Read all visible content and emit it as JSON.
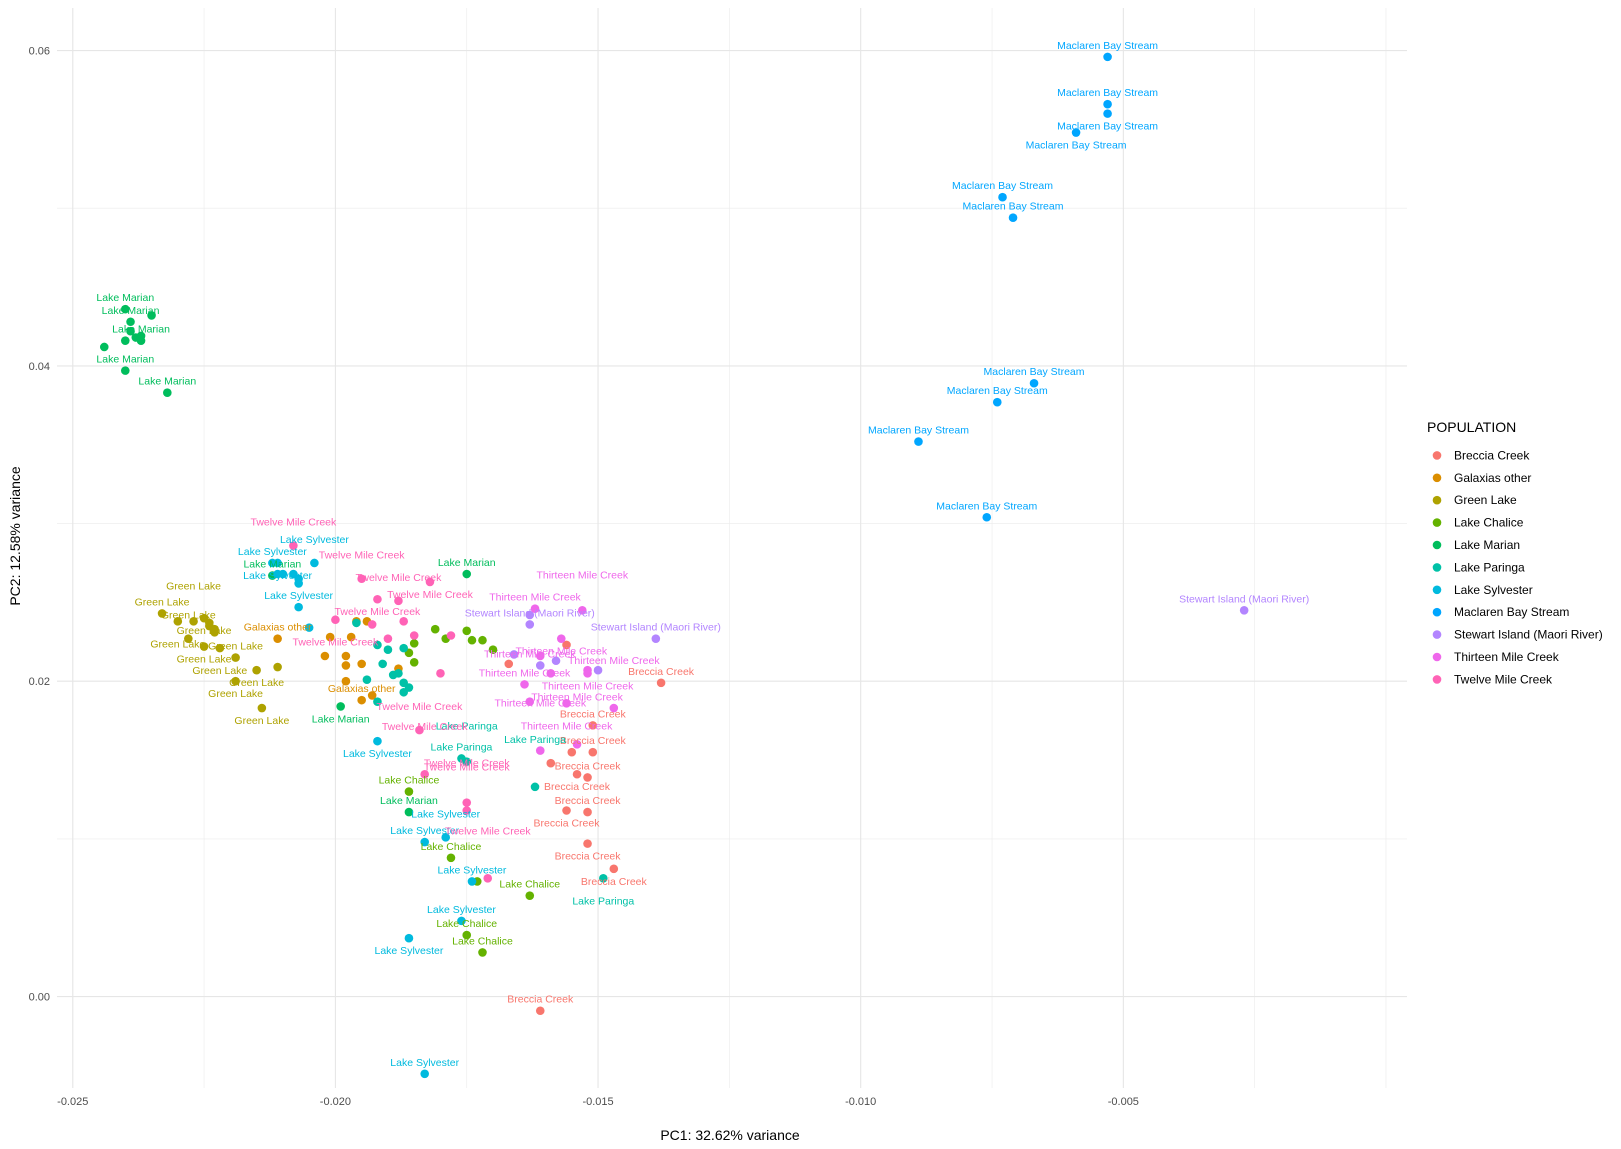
{
  "chart_data": {
    "type": "scatter",
    "title": "",
    "xlabel": "PC1: 32.62% variance",
    "ylabel": "PC2: 12.58% variance",
    "xlim": [
      -0.0253,
      0.0004
    ],
    "ylim": [
      -0.0058,
      0.0627
    ],
    "x_ticks": [
      -0.025,
      -0.02,
      -0.015,
      -0.01,
      -0.005
    ],
    "x_tick_labels": [
      "-0.025",
      "-0.020",
      "-0.015",
      "-0.010",
      "-0.005"
    ],
    "y_ticks": [
      0.0,
      0.02,
      0.04,
      0.06
    ],
    "y_tick_labels": [
      "0.00",
      "0.02",
      "0.04",
      "0.06"
    ],
    "grid": true,
    "legend": {
      "title": "POPULATION",
      "position": "right",
      "entries": [
        {
          "name": "Breccia Creek",
          "color": "#F8766D"
        },
        {
          "name": "Galaxias other",
          "color": "#DB8E00"
        },
        {
          "name": "Green Lake",
          "color": "#AEA200"
        },
        {
          "name": "Lake Chalice",
          "color": "#64B200"
        },
        {
          "name": "Lake Marian",
          "color": "#00BD5C"
        },
        {
          "name": "Lake Paringa",
          "color": "#00C1A7"
        },
        {
          "name": "Lake Sylvester",
          "color": "#00BADE"
        },
        {
          "name": "Maclaren Bay Stream",
          "color": "#00A6FF"
        },
        {
          "name": "Stewart Island (Maori River)",
          "color": "#B385FF"
        },
        {
          "name": "Thirteen Mile Creek",
          "color": "#EF67EB"
        },
        {
          "name": "Twelve Mile Creek",
          "color": "#FF63B6"
        }
      ]
    },
    "series": [
      {
        "name": "Breccia Creek",
        "points": [
          [
            -0.0138,
            0.0199,
            "Breccia Creek"
          ],
          [
            -0.0151,
            0.0172,
            "Breccia Creek"
          ],
          [
            -0.0151,
            0.0155,
            "Breccia Creek"
          ],
          [
            -0.0152,
            0.0139,
            "Breccia Creek"
          ],
          [
            -0.0154,
            0.0141,
            "Breccia Creek"
          ],
          [
            -0.0152,
            0.0117,
            "Breccia Creek"
          ],
          [
            -0.0156,
            0.0118,
            "Breccia Creek"
          ],
          [
            -0.0152,
            0.0097,
            "Breccia Creek"
          ],
          [
            -0.0147,
            0.0081,
            "Breccia Creek"
          ],
          [
            -0.0161,
            -0.0009,
            "Breccia Creek"
          ],
          [
            -0.0156,
            0.0223,
            ""
          ],
          [
            -0.0167,
            0.0211,
            ""
          ],
          [
            -0.0159,
            0.0148,
            ""
          ],
          [
            -0.0155,
            0.0155,
            ""
          ]
        ]
      },
      {
        "name": "Galaxias other",
        "points": [
          [
            -0.0211,
            0.0227,
            "Galaxias other"
          ],
          [
            -0.0195,
            0.0188,
            "Galaxias other"
          ],
          [
            -0.0201,
            0.0228,
            ""
          ],
          [
            -0.0198,
            0.0216,
            ""
          ],
          [
            -0.0195,
            0.0211,
            ""
          ],
          [
            -0.0197,
            0.0228,
            ""
          ],
          [
            -0.0196,
            0.0238,
            ""
          ],
          [
            -0.0202,
            0.0216,
            ""
          ],
          [
            -0.0198,
            0.02,
            ""
          ],
          [
            -0.0193,
            0.0191,
            ""
          ],
          [
            -0.0188,
            0.0208,
            ""
          ],
          [
            -0.0198,
            0.021,
            ""
          ],
          [
            -0.0194,
            0.0238,
            ""
          ]
        ]
      },
      {
        "name": "Green Lake",
        "points": [
          [
            -0.0233,
            0.0243,
            "Green Lake"
          ],
          [
            -0.0225,
            0.024,
            "Green Lake"
          ],
          [
            -0.023,
            0.0238,
            "Green Lake"
          ],
          [
            -0.0227,
            0.0238,
            "Green Lake"
          ],
          [
            -0.0228,
            0.0227,
            "Green Lake"
          ],
          [
            -0.0225,
            0.0222,
            "Green Lake"
          ],
          [
            -0.0222,
            0.0221,
            "Green Lake"
          ],
          [
            -0.0219,
            0.0215,
            "Green Lake"
          ],
          [
            -0.0223,
            0.0233,
            ""
          ],
          [
            -0.0224,
            0.0237,
            ""
          ],
          [
            -0.0223,
            0.0231,
            ""
          ],
          [
            -0.0224,
            0.0235,
            ""
          ],
          [
            -0.0215,
            0.0207,
            "Green Lake"
          ],
          [
            -0.0211,
            0.0209,
            ""
          ],
          [
            -0.0219,
            0.02,
            "Green Lake"
          ],
          [
            -0.0214,
            0.0183,
            "Green Lake"
          ]
        ]
      },
      {
        "name": "Lake Chalice",
        "points": [
          [
            -0.0181,
            0.0233,
            ""
          ],
          [
            -0.0175,
            0.0232,
            ""
          ],
          [
            -0.0174,
            0.0226,
            ""
          ],
          [
            -0.0172,
            0.0226,
            ""
          ],
          [
            -0.0179,
            0.0227,
            ""
          ],
          [
            -0.017,
            0.022,
            ""
          ],
          [
            -0.0185,
            0.0224,
            ""
          ],
          [
            -0.0186,
            0.0218,
            ""
          ],
          [
            -0.0185,
            0.0212,
            ""
          ],
          [
            -0.0186,
            0.013,
            "Lake Chalice"
          ],
          [
            -0.0178,
            0.0088,
            "Lake Chalice"
          ],
          [
            -0.0173,
            0.0073,
            ""
          ],
          [
            -0.0163,
            0.0064,
            "Lake Chalice"
          ],
          [
            -0.0175,
            0.0039,
            "Lake Chalice"
          ],
          [
            -0.0172,
            0.0028,
            "Lake Chalice"
          ]
        ]
      },
      {
        "name": "Lake Marian",
        "points": [
          [
            -0.024,
            0.0436,
            "Lake Marian"
          ],
          [
            -0.0239,
            0.0428,
            "Lake Marian"
          ],
          [
            -0.0235,
            0.0432,
            ""
          ],
          [
            -0.0239,
            0.0422,
            ""
          ],
          [
            -0.0238,
            0.0418,
            ""
          ],
          [
            -0.0237,
            0.0419,
            ""
          ],
          [
            -0.024,
            0.0416,
            ""
          ],
          [
            -0.0237,
            0.0416,
            "Lake Marian"
          ],
          [
            -0.0244,
            0.0412,
            ""
          ],
          [
            -0.024,
            0.0397,
            "Lake Marian"
          ],
          [
            -0.0232,
            0.0383,
            "Lake Marian"
          ],
          [
            -0.0212,
            0.0267,
            "Lake Marian"
          ],
          [
            -0.0175,
            0.0268,
            "Lake Marian"
          ],
          [
            -0.0199,
            0.0184,
            "Lake Marian"
          ],
          [
            -0.0186,
            0.0117,
            "Lake Marian"
          ]
        ]
      },
      {
        "name": "Lake Paringa",
        "points": [
          [
            -0.0192,
            0.0223,
            ""
          ],
          [
            -0.019,
            0.022,
            ""
          ],
          [
            -0.0187,
            0.0221,
            ""
          ],
          [
            -0.0194,
            0.0201,
            ""
          ],
          [
            -0.0191,
            0.0211,
            ""
          ],
          [
            -0.0189,
            0.0204,
            ""
          ],
          [
            -0.0188,
            0.0205,
            ""
          ],
          [
            -0.0187,
            0.0199,
            ""
          ],
          [
            -0.0187,
            0.0193,
            ""
          ],
          [
            -0.0186,
            0.0196,
            ""
          ],
          [
            -0.0192,
            0.0187,
            ""
          ],
          [
            -0.0176,
            0.0151,
            "Lake Paringa"
          ],
          [
            -0.0175,
            0.0149,
            "Lake Paringa"
          ],
          [
            -0.0162,
            0.0133,
            "Lake Paringa"
          ],
          [
            -0.0149,
            0.0075,
            "Lake Paringa"
          ],
          [
            -0.0196,
            0.0237,
            ""
          ]
        ]
      },
      {
        "name": "Lake Sylvester",
        "points": [
          [
            -0.0212,
            0.0275,
            "Lake Sylvester"
          ],
          [
            -0.0211,
            0.0275,
            "Lake Sylvester"
          ],
          [
            -0.0204,
            0.0275,
            "Lake Sylvester"
          ],
          [
            -0.0207,
            0.0247,
            "Lake Sylvester"
          ],
          [
            -0.0208,
            0.0268,
            ""
          ],
          [
            -0.0211,
            0.0268,
            ""
          ],
          [
            -0.021,
            0.0268,
            ""
          ],
          [
            -0.0207,
            0.0265,
            ""
          ],
          [
            -0.0207,
            0.0262,
            ""
          ],
          [
            -0.0205,
            0.0234,
            ""
          ],
          [
            -0.0192,
            0.0162,
            "Lake Sylvester"
          ],
          [
            -0.0183,
            0.0098,
            "Lake Sylvester"
          ],
          [
            -0.0179,
            0.0101,
            "Lake Sylvester"
          ],
          [
            -0.0174,
            0.0073,
            "Lake Sylvester"
          ],
          [
            -0.0176,
            0.0048,
            "Lake Sylvester"
          ],
          [
            -0.0186,
            0.0037,
            "Lake Sylvester"
          ],
          [
            -0.0183,
            -0.0049,
            "Lake Sylvester"
          ]
        ]
      },
      {
        "name": "Maclaren Bay Stream",
        "points": [
          [
            -0.0053,
            0.0596,
            "Maclaren Bay Stream"
          ],
          [
            -0.0053,
            0.0566,
            "Maclaren Bay Stream"
          ],
          [
            -0.0053,
            0.056,
            "Maclaren Bay Stream"
          ],
          [
            -0.0059,
            0.0548,
            "Maclaren Bay Stream"
          ],
          [
            -0.0073,
            0.0507,
            "Maclaren Bay Stream"
          ],
          [
            -0.0071,
            0.0494,
            "Maclaren Bay Stream"
          ],
          [
            -0.0067,
            0.0389,
            "Maclaren Bay Stream"
          ],
          [
            -0.0074,
            0.0377,
            "Maclaren Bay Stream"
          ],
          [
            -0.0089,
            0.0352,
            "Maclaren Bay Stream"
          ],
          [
            -0.0076,
            0.0304,
            "Maclaren Bay Stream"
          ]
        ]
      },
      {
        "name": "Stewart Island (Maori River)",
        "points": [
          [
            -0.0027,
            0.0245,
            "Stewart Island (Maori River)"
          ],
          [
            -0.0139,
            0.0227,
            "Stewart Island (Maori River)"
          ],
          [
            -0.0163,
            0.0236,
            "Stewart Island (Maori River)"
          ],
          [
            -0.0163,
            0.0242,
            ""
          ],
          [
            -0.0166,
            0.0217,
            ""
          ],
          [
            -0.0161,
            0.021,
            ""
          ],
          [
            -0.0158,
            0.0213,
            ""
          ],
          [
            -0.015,
            0.0207,
            ""
          ]
        ]
      },
      {
        "name": "Thirteen Mile Creek",
        "points": [
          [
            -0.0162,
            0.0246,
            "Thirteen Mile Creek"
          ],
          [
            -0.0153,
            0.0245,
            "Thirteen Mile Creek"
          ],
          [
            -0.0157,
            0.0227,
            "Thirteen Mile Creek"
          ],
          [
            -0.0152,
            0.0205,
            "Thirteen Mile Creek"
          ],
          [
            -0.0164,
            0.0198,
            "Thirteen Mile Creek"
          ],
          [
            -0.0163,
            0.0187,
            "Thirteen Mile Creek"
          ],
          [
            -0.0156,
            0.0186,
            "Thirteen Mile Creek"
          ],
          [
            -0.0147,
            0.0183,
            "Thirteen Mile Creek"
          ],
          [
            -0.0161,
            0.0156,
            "Thirteen Mile Creek"
          ],
          [
            -0.0154,
            0.016,
            "Thirteen Mile Creek"
          ],
          [
            -0.0161,
            0.0216,
            ""
          ],
          [
            -0.0152,
            0.0207,
            ""
          ],
          [
            -0.0159,
            0.0205,
            ""
          ]
        ]
      },
      {
        "name": "Twelve Mile Creek",
        "points": [
          [
            -0.0208,
            0.0286,
            "Twelve Mile Creek"
          ],
          [
            -0.0195,
            0.0265,
            "Twelve Mile Creek"
          ],
          [
            -0.0182,
            0.0263,
            "Twelve Mile Creek"
          ],
          [
            -0.0192,
            0.0252,
            "Twelve Mile Creek"
          ],
          [
            -0.0188,
            0.0251,
            "Twelve Mile Creek"
          ],
          [
            -0.02,
            0.0239,
            "Twelve Mile Creek"
          ],
          [
            -0.0187,
            0.0238,
            ""
          ],
          [
            -0.0193,
            0.0236,
            ""
          ],
          [
            -0.0185,
            0.0229,
            ""
          ],
          [
            -0.019,
            0.0227,
            ""
          ],
          [
            -0.0178,
            0.0229,
            ""
          ],
          [
            -0.018,
            0.0205,
            ""
          ],
          [
            -0.0184,
            0.0169,
            "Twelve Mile Creek"
          ],
          [
            -0.0183,
            0.0141,
            "Twelve Mile Creek"
          ],
          [
            -0.0175,
            0.0123,
            "Twelve Mile Creek"
          ],
          [
            -0.0175,
            0.0118,
            "Twelve Mile Creek"
          ],
          [
            -0.0171,
            0.0075,
            "Twelve Mile Creek"
          ]
        ]
      }
    ]
  }
}
